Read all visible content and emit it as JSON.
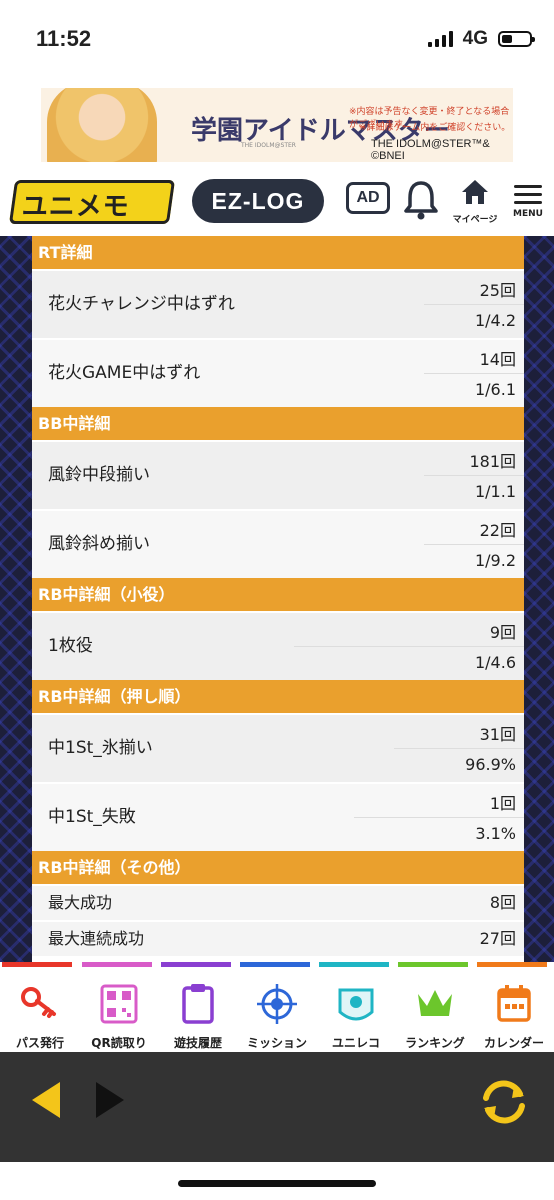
{
  "status_bar": {
    "time": "11:52",
    "network": "4G"
  },
  "ad_banner": {
    "logo": "学園アイドルマスター",
    "logo_sub": "THE IDOLM@STER",
    "note1": "※内容は予告なく変更・終了となる場合がございます。",
    "note2": "※詳細はゲーム内をご確認ください。",
    "copyright": "THE IDOLM@STER™& ©BNEI"
  },
  "header": {
    "brand": "ユニメモ",
    "ezlog": "EZ-LOG",
    "ad_label": "AD",
    "mypage_label": "マイページ",
    "menu_label": "MENU"
  },
  "sections": [
    {
      "title": "RT詳細",
      "rows": [
        {
          "label": "花火チャレンジ中はずれ",
          "count": "25回",
          "ratio": "1/4.2"
        },
        {
          "label": "花火GAME中はずれ",
          "count": "14回",
          "ratio": "1/6.1"
        }
      ]
    },
    {
      "title": "BB中詳細",
      "rows": [
        {
          "label": "風鈴中段揃い",
          "count": "181回",
          "ratio": "1/1.1"
        },
        {
          "label": "風鈴斜め揃い",
          "count": "22回",
          "ratio": "1/9.2"
        }
      ]
    },
    {
      "title": "RB中詳細（小役）",
      "rows": [
        {
          "label": "1枚役",
          "count": "9回",
          "ratio": "1/4.6"
        }
      ]
    },
    {
      "title": "RB中詳細（押し順）",
      "rows": [
        {
          "label": "中1St_氷揃い",
          "count": "31回",
          "ratio": "96.9%"
        },
        {
          "label": "中1St_失敗",
          "count": "1回",
          "ratio": "3.1%"
        }
      ]
    },
    {
      "title": "RB中詳細（その他）",
      "rows": [
        {
          "label": "最大成功",
          "value": "8回"
        },
        {
          "label": "最大連続成功",
          "value": "27回"
        }
      ]
    }
  ],
  "tab_bar": [
    {
      "label": "パス発行",
      "icon": "key-icon",
      "color": "#e8362a"
    },
    {
      "label": "QR読取り",
      "icon": "qr-icon",
      "color": "#d85bc8"
    },
    {
      "label": "遊技履歴",
      "icon": "clipboard-icon",
      "color": "#8a3fd1"
    },
    {
      "label": "ミッション",
      "icon": "target-icon",
      "color": "#2d67d8"
    },
    {
      "label": "ユニレコ",
      "icon": "unireco-icon",
      "color": "#1fb5c4"
    },
    {
      "label": "ランキング",
      "icon": "crown-icon",
      "color": "#6cc62c"
    },
    {
      "label": "カレンダー",
      "icon": "calendar-icon",
      "color": "#f07a1a"
    }
  ]
}
